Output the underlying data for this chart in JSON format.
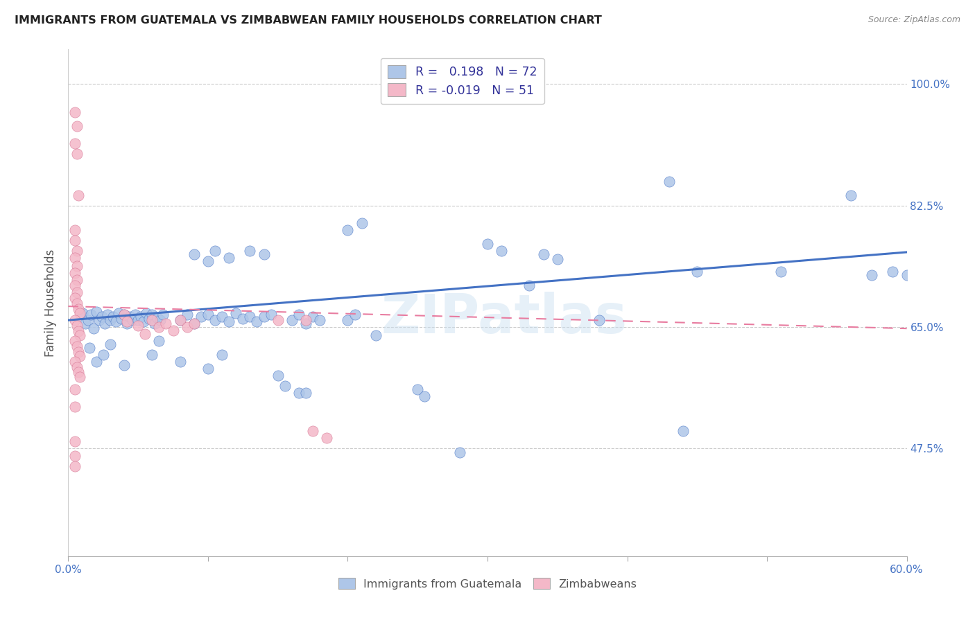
{
  "title": "IMMIGRANTS FROM GUATEMALA VS ZIMBABWEAN FAMILY HOUSEHOLDS CORRELATION CHART",
  "source": "Source: ZipAtlas.com",
  "ylabel": "Family Households",
  "yticks": [
    "100.0%",
    "82.5%",
    "65.0%",
    "47.5%"
  ],
  "ytick_vals": [
    1.0,
    0.825,
    0.65,
    0.475
  ],
  "xmin": 0.0,
  "xmax": 0.6,
  "ymin": 0.32,
  "ymax": 1.05,
  "blue_color": "#aec6e8",
  "pink_color": "#f4b8c8",
  "line_blue": "#4472c4",
  "line_pink": "#e87ca0",
  "watermark": "ZIPatlas",
  "blue_scatter": [
    [
      0.01,
      0.67
    ],
    [
      0.012,
      0.655
    ],
    [
      0.014,
      0.66
    ],
    [
      0.016,
      0.668
    ],
    [
      0.018,
      0.648
    ],
    [
      0.02,
      0.672
    ],
    [
      0.022,
      0.66
    ],
    [
      0.024,
      0.665
    ],
    [
      0.026,
      0.655
    ],
    [
      0.028,
      0.668
    ],
    [
      0.03,
      0.66
    ],
    [
      0.032,
      0.665
    ],
    [
      0.034,
      0.658
    ],
    [
      0.036,
      0.67
    ],
    [
      0.038,
      0.662
    ],
    [
      0.04,
      0.668
    ],
    [
      0.042,
      0.655
    ],
    [
      0.044,
      0.665
    ],
    [
      0.046,
      0.66
    ],
    [
      0.048,
      0.668
    ],
    [
      0.05,
      0.66
    ],
    [
      0.052,
      0.665
    ],
    [
      0.054,
      0.658
    ],
    [
      0.056,
      0.67
    ],
    [
      0.058,
      0.662
    ],
    [
      0.06,
      0.668
    ],
    [
      0.062,
      0.655
    ],
    [
      0.064,
      0.663
    ],
    [
      0.066,
      0.66
    ],
    [
      0.068,
      0.668
    ],
    [
      0.015,
      0.62
    ],
    [
      0.02,
      0.6
    ],
    [
      0.025,
      0.61
    ],
    [
      0.03,
      0.625
    ],
    [
      0.04,
      0.595
    ],
    [
      0.06,
      0.61
    ],
    [
      0.065,
      0.63
    ],
    [
      0.08,
      0.6
    ],
    [
      0.1,
      0.59
    ],
    [
      0.11,
      0.61
    ],
    [
      0.08,
      0.66
    ],
    [
      0.085,
      0.668
    ],
    [
      0.09,
      0.655
    ],
    [
      0.095,
      0.665
    ],
    [
      0.1,
      0.668
    ],
    [
      0.105,
      0.66
    ],
    [
      0.11,
      0.665
    ],
    [
      0.115,
      0.658
    ],
    [
      0.12,
      0.67
    ],
    [
      0.125,
      0.662
    ],
    [
      0.13,
      0.665
    ],
    [
      0.135,
      0.658
    ],
    [
      0.14,
      0.665
    ],
    [
      0.145,
      0.668
    ],
    [
      0.09,
      0.755
    ],
    [
      0.1,
      0.745
    ],
    [
      0.105,
      0.76
    ],
    [
      0.115,
      0.75
    ],
    [
      0.13,
      0.76
    ],
    [
      0.14,
      0.755
    ],
    [
      0.16,
      0.66
    ],
    [
      0.165,
      0.668
    ],
    [
      0.17,
      0.655
    ],
    [
      0.175,
      0.665
    ],
    [
      0.18,
      0.66
    ],
    [
      0.15,
      0.58
    ],
    [
      0.155,
      0.565
    ],
    [
      0.165,
      0.555
    ],
    [
      0.17,
      0.555
    ],
    [
      0.2,
      0.79
    ],
    [
      0.21,
      0.8
    ],
    [
      0.2,
      0.66
    ],
    [
      0.205,
      0.668
    ],
    [
      0.22,
      0.638
    ],
    [
      0.25,
      0.56
    ],
    [
      0.255,
      0.55
    ],
    [
      0.28,
      0.47
    ],
    [
      0.3,
      0.77
    ],
    [
      0.31,
      0.76
    ],
    [
      0.33,
      0.71
    ],
    [
      0.34,
      0.755
    ],
    [
      0.35,
      0.748
    ],
    [
      0.38,
      0.66
    ],
    [
      0.43,
      0.86
    ],
    [
      0.45,
      0.73
    ],
    [
      0.51,
      0.73
    ],
    [
      0.56,
      0.84
    ],
    [
      0.575,
      0.725
    ],
    [
      0.59,
      0.73
    ],
    [
      0.44,
      0.5
    ],
    [
      0.6,
      0.725
    ]
  ],
  "pink_scatter": [
    [
      0.005,
      0.96
    ],
    [
      0.006,
      0.94
    ],
    [
      0.005,
      0.915
    ],
    [
      0.006,
      0.9
    ],
    [
      0.007,
      0.84
    ],
    [
      0.005,
      0.79
    ],
    [
      0.005,
      0.775
    ],
    [
      0.006,
      0.76
    ],
    [
      0.005,
      0.75
    ],
    [
      0.006,
      0.738
    ],
    [
      0.005,
      0.728
    ],
    [
      0.006,
      0.718
    ],
    [
      0.005,
      0.71
    ],
    [
      0.006,
      0.7
    ],
    [
      0.005,
      0.692
    ],
    [
      0.006,
      0.684
    ],
    [
      0.007,
      0.676
    ],
    [
      0.008,
      0.67
    ],
    [
      0.005,
      0.66
    ],
    [
      0.006,
      0.652
    ],
    [
      0.007,
      0.644
    ],
    [
      0.008,
      0.638
    ],
    [
      0.005,
      0.63
    ],
    [
      0.006,
      0.622
    ],
    [
      0.007,
      0.614
    ],
    [
      0.008,
      0.608
    ],
    [
      0.005,
      0.6
    ],
    [
      0.006,
      0.592
    ],
    [
      0.007,
      0.585
    ],
    [
      0.008,
      0.578
    ],
    [
      0.005,
      0.56
    ],
    [
      0.005,
      0.535
    ],
    [
      0.005,
      0.485
    ],
    [
      0.005,
      0.465
    ],
    [
      0.005,
      0.45
    ],
    [
      0.04,
      0.668
    ],
    [
      0.042,
      0.658
    ],
    [
      0.05,
      0.652
    ],
    [
      0.055,
      0.64
    ],
    [
      0.06,
      0.66
    ],
    [
      0.065,
      0.65
    ],
    [
      0.07,
      0.655
    ],
    [
      0.075,
      0.645
    ],
    [
      0.08,
      0.66
    ],
    [
      0.085,
      0.65
    ],
    [
      0.09,
      0.655
    ],
    [
      0.15,
      0.66
    ],
    [
      0.17,
      0.66
    ],
    [
      0.175,
      0.5
    ],
    [
      0.185,
      0.49
    ]
  ],
  "blue_line": {
    "x0": 0.0,
    "y0": 0.66,
    "x1": 0.6,
    "y1": 0.758
  },
  "pink_line": {
    "x0": 0.0,
    "y0": 0.68,
    "x1": 0.6,
    "y1": 0.648
  },
  "xtick_positions": [
    0.0,
    0.1,
    0.2,
    0.3,
    0.4,
    0.5,
    0.6
  ],
  "xtick_show": [
    true,
    false,
    false,
    false,
    false,
    false,
    true
  ]
}
